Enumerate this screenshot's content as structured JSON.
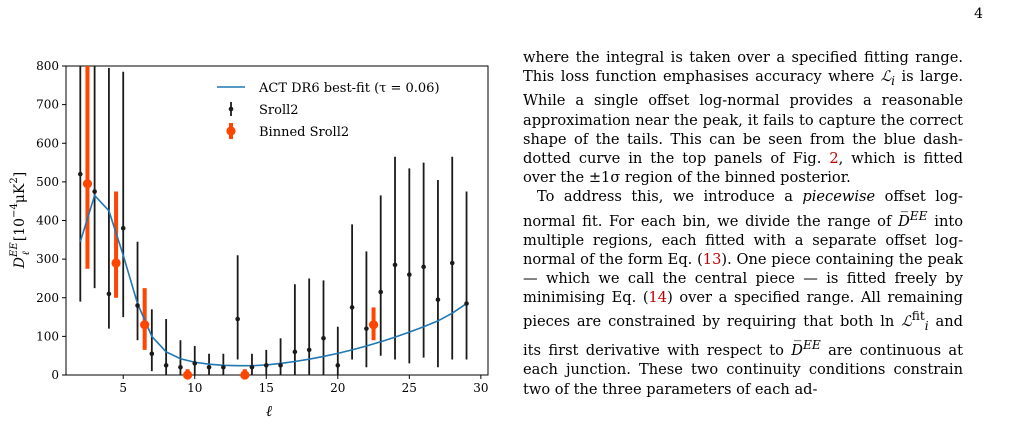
{
  "page": {
    "number": "4"
  },
  "figure": {
    "chart_data": {
      "type": "scatter",
      "xlabel": "ℓ",
      "ylabel": "D_ℓ^{EE} [10^{-4}μK^2]",
      "xlim": [
        1,
        30.5
      ],
      "ylim": [
        0,
        800
      ],
      "xticks": [
        5,
        10,
        15,
        20,
        25,
        30
      ],
      "yticks": [
        0,
        100,
        200,
        300,
        400,
        500,
        600,
        700,
        800
      ],
      "grid": false,
      "legend_position": "top-right",
      "colors": {
        "model": "#1f77b4",
        "sroll2": "#1a1a1a",
        "binned": "#ff4500"
      },
      "legend": {
        "model": "ACT DR6 best-fit (τ = 0.06)",
        "sroll2": "Sroll2",
        "binned": "Binned Sroll2"
      },
      "series": [
        {
          "name": "ACT DR6 best-fit (τ = 0.06)",
          "type": "line",
          "x": [
            2,
            3,
            4,
            5,
            6,
            7,
            8,
            9,
            10,
            11,
            12,
            13,
            14,
            15,
            16,
            17,
            18,
            19,
            20,
            21,
            22,
            23,
            24,
            25,
            26,
            27,
            28,
            29
          ],
          "y": [
            345,
            465,
            425,
            310,
            185,
            100,
            60,
            42,
            33,
            28,
            25,
            24,
            24,
            26,
            30,
            35,
            41,
            48,
            56,
            65,
            75,
            86,
            98,
            111,
            125,
            140,
            160,
            185
          ]
        },
        {
          "name": "Sroll2",
          "type": "errorbar",
          "x": [
            2,
            3,
            4,
            5,
            6,
            7,
            8,
            9,
            10,
            11,
            12,
            13,
            14,
            15,
            16,
            17,
            18,
            19,
            20,
            21,
            22,
            23,
            24,
            25,
            26,
            27,
            28,
            29
          ],
          "y": [
            520,
            475,
            210,
            380,
            180,
            55,
            25,
            20,
            30,
            20,
            20,
            145,
            20,
            25,
            25,
            60,
            65,
            95,
            25,
            175,
            120,
            215,
            285,
            260,
            280,
            195,
            290,
            185
          ],
          "lo": [
            190,
            225,
            120,
            150,
            90,
            10,
            0,
            0,
            0,
            0,
            0,
            40,
            0,
            0,
            0,
            0,
            0,
            0,
            0,
            40,
            20,
            50,
            40,
            30,
            45,
            20,
            40,
            40
          ],
          "hi": [
            800,
            800,
            795,
            785,
            345,
            170,
            145,
            90,
            75,
            55,
            55,
            310,
            55,
            65,
            95,
            235,
            250,
            245,
            125,
            390,
            320,
            465,
            565,
            535,
            550,
            505,
            565,
            475
          ]
        },
        {
          "name": "Binned Sroll2",
          "type": "errorbar",
          "x": [
            2.5,
            4.5,
            6.5,
            9.5,
            13.5,
            22.5
          ],
          "y": [
            495,
            290,
            130,
            0,
            0,
            130
          ],
          "lo": [
            275,
            200,
            65,
            0,
            0,
            90
          ],
          "hi": [
            800,
            475,
            225,
            15,
            15,
            175
          ]
        }
      ]
    }
  },
  "text": {
    "p1_a": "where the integral is taken over a specified fitting range. This loss function emphasises accuracy where ",
    "p1_Li": "ℒ",
    "p1_i": "i",
    "p1_b": " is large. While a single offset log-normal provides a reasonable approximation near the peak, it fails to capture the correct shape of the tails. This can be seen from the blue dash-dotted curve in the top panels of Fig. ",
    "p1_ref": "2",
    "p1_c": ", which is fitted over the ±1σ region of the binned posterior.",
    "p2_a": "To address this, we introduce a ",
    "p2_em": "piecewise",
    "p2_b": " offset log-normal fit. For each bin, we divide the range of ",
    "p2_D": "D̅",
    "p2_EE": "EE",
    "p2_c": " into multiple regions, each fitted with a separate offset log-normal of the form Eq. (",
    "p2_ref13": "13",
    "p2_d": "). One piece containing the peak — which we call the central piece — is fitted freely by minimising Eq. (",
    "p2_ref14": "14",
    "p2_e": ") over a specified range. All remaining pieces are constrained by requiring that both ln ",
    "p2_L": "ℒ",
    "p2_fit": "fit",
    "p2_i": "i",
    "p2_f": " and its first derivative with respect to ",
    "p2_D2": "D̅",
    "p2_EE2": "EE",
    "p2_g": " are continuous at each junction. These two continuity conditions constrain two of the three parameters of each ad-"
  }
}
